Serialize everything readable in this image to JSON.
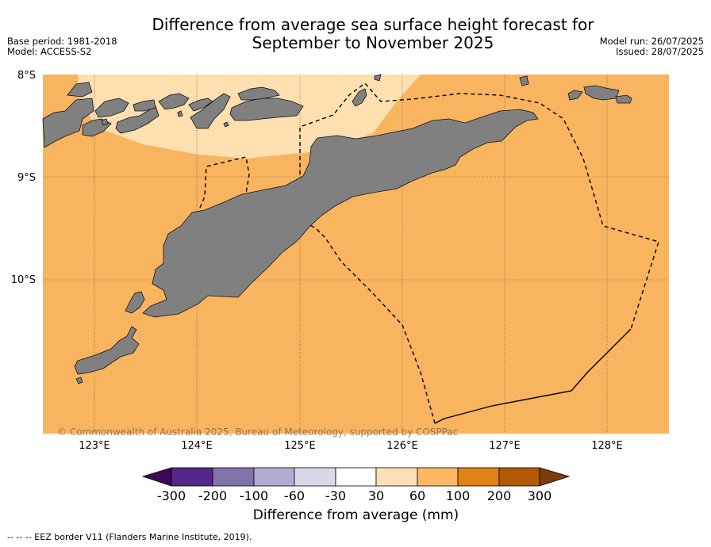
{
  "title": {
    "line1": "Difference from average sea surface height forecast for",
    "line2": "September to November 2025"
  },
  "meta": {
    "base_period": "Base period: 1981-2018",
    "model": "Model: ACCESS-S2",
    "model_run": "Model run: 26/07/2025",
    "issued": "Issued: 28/07/2025"
  },
  "map": {
    "lat_labels": [
      "8°S",
      "9°S",
      "10°S"
    ],
    "lon_labels": [
      "123°E",
      "124°E",
      "125°E",
      "126°E",
      "127°E",
      "128°E"
    ],
    "copyright": "© Commonwealth of Australia 2025, Bureau of Meteorology, supported by COSPPac",
    "colors": {
      "ocean_main": "#f8b45e",
      "ocean_light": "#fddfb0",
      "land": "#808080"
    }
  },
  "colorbar": {
    "ticks": [
      "-300",
      "-200",
      "-100",
      "-60",
      "-30",
      "30",
      "60",
      "100",
      "200",
      "300"
    ],
    "colors": [
      "#3f0a55",
      "#542788",
      "#8073ac",
      "#b2abd2",
      "#d8daeb",
      "#ffffff",
      "#fee0b6",
      "#fdb863",
      "#e08214",
      "#b35806",
      "#7f3b08"
    ],
    "label": "Difference from average (mm)"
  },
  "footer": "--  --  -- EEZ border V11 (Flanders Marine Institute, 2019)."
}
